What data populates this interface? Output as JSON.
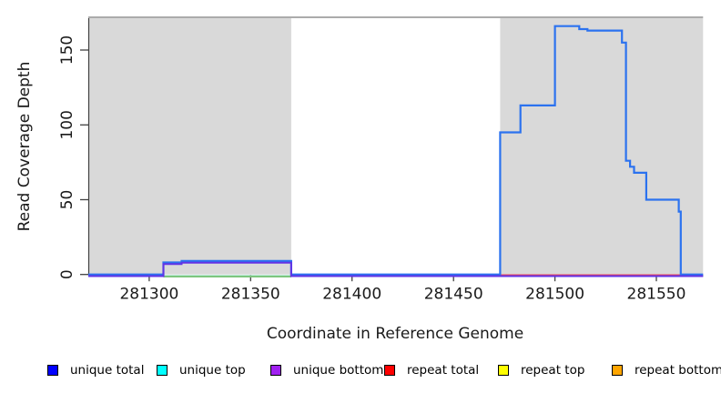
{
  "figure": {
    "background": "#ffffff"
  },
  "legend": {
    "items": [
      {
        "label": "unique total",
        "color": "#0000ff"
      },
      {
        "label": "unique top",
        "color": "#00ffff"
      },
      {
        "label": "unique bottom",
        "color": "#a020f0"
      },
      {
        "label": "repeat total",
        "color": "#ff0000"
      },
      {
        "label": "repeat top",
        "color": "#ffff00"
      },
      {
        "label": "repeat bottom",
        "color": "#ffa500"
      }
    ]
  },
  "chart_data": {
    "type": "line",
    "subtype": "step",
    "title": "",
    "xlabel": "Coordinate in Reference Genome",
    "ylabel": "Read Coverage Depth",
    "xlim": [
      281270,
      281573
    ],
    "ylim": [
      0,
      171.3
    ],
    "x_ticks": [
      281300,
      281350,
      281400,
      281450,
      281500,
      281550
    ],
    "y_ticks": [
      0,
      50,
      100,
      150
    ],
    "grid": false,
    "legend_position": "bottom",
    "shade_color": "#d9d9d9",
    "shaded_regions": [
      {
        "x_start": 281270,
        "x_end": 281370
      },
      {
        "x_start": 281473,
        "x_end": 281573
      }
    ],
    "series": [
      {
        "name": "repeat top",
        "color": "#f0e000",
        "steps": [
          [
            281473,
            0
          ]
        ]
      },
      {
        "name": "repeat bottom",
        "color": "#f0a000",
        "steps": [
          [
            281473,
            0
          ]
        ]
      },
      {
        "name": "unique top",
        "color": "#00dede",
        "steps": [
          [
            281270,
            0
          ]
        ]
      },
      {
        "name": "repeat total",
        "color": "#ee4656",
        "steps": [
          [
            281473,
            0
          ]
        ]
      },
      {
        "name": "unique total",
        "color": "#2b72ef",
        "steps": [
          [
            281270,
            0
          ],
          [
            281307,
            8
          ],
          [
            281316,
            9
          ],
          [
            281370,
            0
          ],
          [
            281473,
            95
          ],
          [
            281483,
            113
          ],
          [
            281500,
            166
          ],
          [
            281512,
            164
          ],
          [
            281516,
            163
          ],
          [
            281533,
            155
          ],
          [
            281535,
            76
          ],
          [
            281537,
            72
          ],
          [
            281539,
            68
          ],
          [
            281545,
            50
          ],
          [
            281561,
            42
          ],
          [
            281562,
            0
          ]
        ]
      },
      {
        "name": "unique bottom",
        "color": "#6233e5",
        "steps": [
          [
            281270,
            0
          ],
          [
            281307,
            8
          ],
          [
            281316,
            9
          ],
          [
            281370,
            0
          ]
        ]
      }
    ],
    "baseline_artifact": {
      "color": "#7ec57e",
      "x_start": 281307,
      "x_end": 281370,
      "y": 0
    }
  }
}
